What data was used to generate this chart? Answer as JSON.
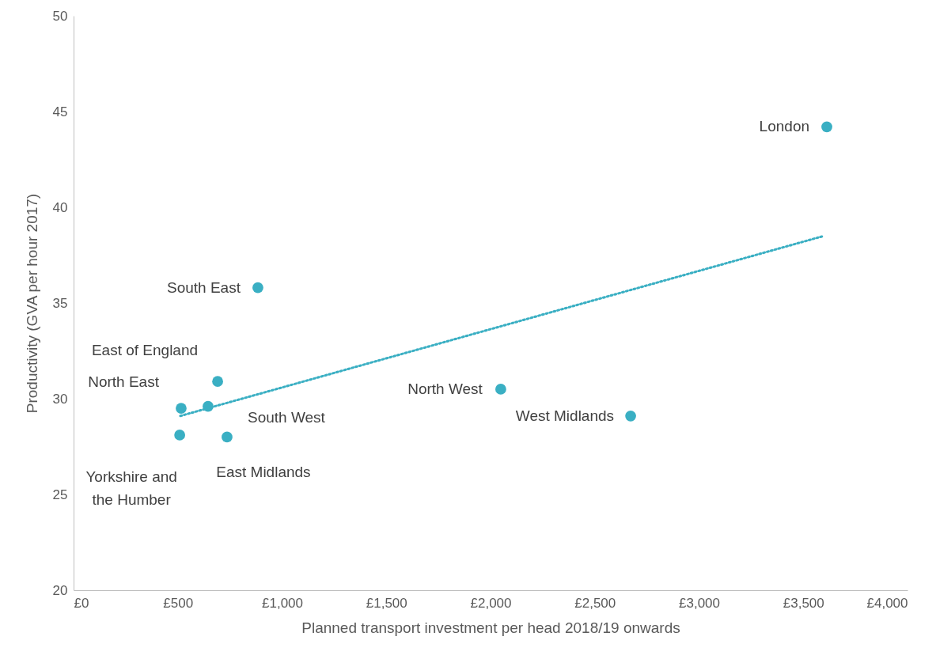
{
  "chart_data": {
    "type": "scatter",
    "xlabel": "Planned transport investment per head 2018/19 onwards",
    "ylabel": "Productivity (GVA per hour 2017)",
    "xlim": [
      0,
      4000
    ],
    "ylim": [
      20,
      50
    ],
    "xticks": [
      {
        "value": 0,
        "label": "£0"
      },
      {
        "value": 500,
        "label": "£500"
      },
      {
        "value": 1000,
        "label": "£1,000"
      },
      {
        "value": 1500,
        "label": "£1,500"
      },
      {
        "value": 2000,
        "label": "£2,000"
      },
      {
        "value": 2500,
        "label": "£2,500"
      },
      {
        "value": 3000,
        "label": "£3,000"
      },
      {
        "value": 3500,
        "label": "£3,500"
      },
      {
        "value": 4000,
        "label": "£4,000"
      }
    ],
    "yticks": [
      20,
      25,
      30,
      35,
      40,
      45,
      50
    ],
    "grid": false,
    "series": [
      {
        "marker": "circle",
        "color": "#3aafc3",
        "x": [
          3613,
          884,
          691,
          516,
          645,
          509,
          736,
          2049,
          2672
        ],
        "values": [
          44.2,
          35.8,
          30.9,
          29.5,
          29.6,
          28.1,
          28.0,
          30.5,
          29.1
        ]
      },
      {
        "type": "line",
        "color": "#3aafc3",
        "line_style": "dotted",
        "x": [
          512,
          3598
        ],
        "values": [
          29.1,
          38.5
        ]
      }
    ],
    "annotations": [
      {
        "text": "London",
        "x": 3613,
        "y": 44.2
      },
      {
        "text": "South East",
        "x": 884,
        "y": 35.8
      },
      {
        "text": "East of England",
        "x": 691,
        "y": 30.9
      },
      {
        "text": "North East",
        "x": 516,
        "y": 29.5
      },
      {
        "text": "South West",
        "x": 645,
        "y": 29.6
      },
      {
        "text": "Yorkshire and the Humber",
        "x": 509,
        "y": 28.1
      },
      {
        "text": "East Midlands",
        "x": 736,
        "y": 28.0
      },
      {
        "text": "North West",
        "x": 2049,
        "y": 30.5
      },
      {
        "text": "West Midlands",
        "x": 2672,
        "y": 29.1
      }
    ]
  }
}
